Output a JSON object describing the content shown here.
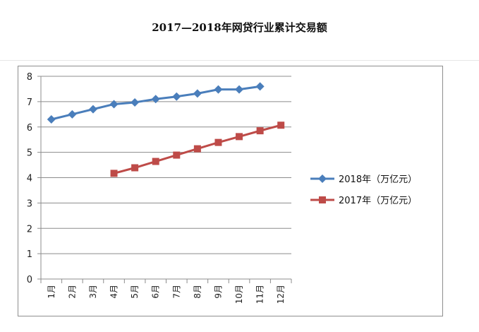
{
  "chart_data": {
    "type": "line",
    "title": "2017—2018年网贷行业累计交易额",
    "categories": [
      "1月",
      "2月",
      "3月",
      "4月",
      "5月",
      "6月",
      "7月",
      "8月",
      "9月",
      "10月",
      "11月",
      "12月"
    ],
    "ylim": [
      0,
      8
    ],
    "yticks": [
      0,
      1,
      2,
      3,
      4,
      5,
      6,
      7,
      8
    ],
    "grid": true,
    "legend_position": "right",
    "series": [
      {
        "name": "2018年（万亿元）",
        "color": "#4a7ebb",
        "marker": "diamond",
        "values": [
          6.3,
          6.5,
          6.7,
          6.9,
          6.97,
          7.1,
          7.2,
          7.32,
          7.48,
          7.48,
          7.6,
          null
        ]
      },
      {
        "name": "2017年（万亿元）",
        "color": "#be4b48",
        "marker": "square",
        "values": [
          null,
          null,
          null,
          4.17,
          4.39,
          4.64,
          4.89,
          5.14,
          5.39,
          5.62,
          5.85,
          6.07
        ]
      }
    ]
  }
}
